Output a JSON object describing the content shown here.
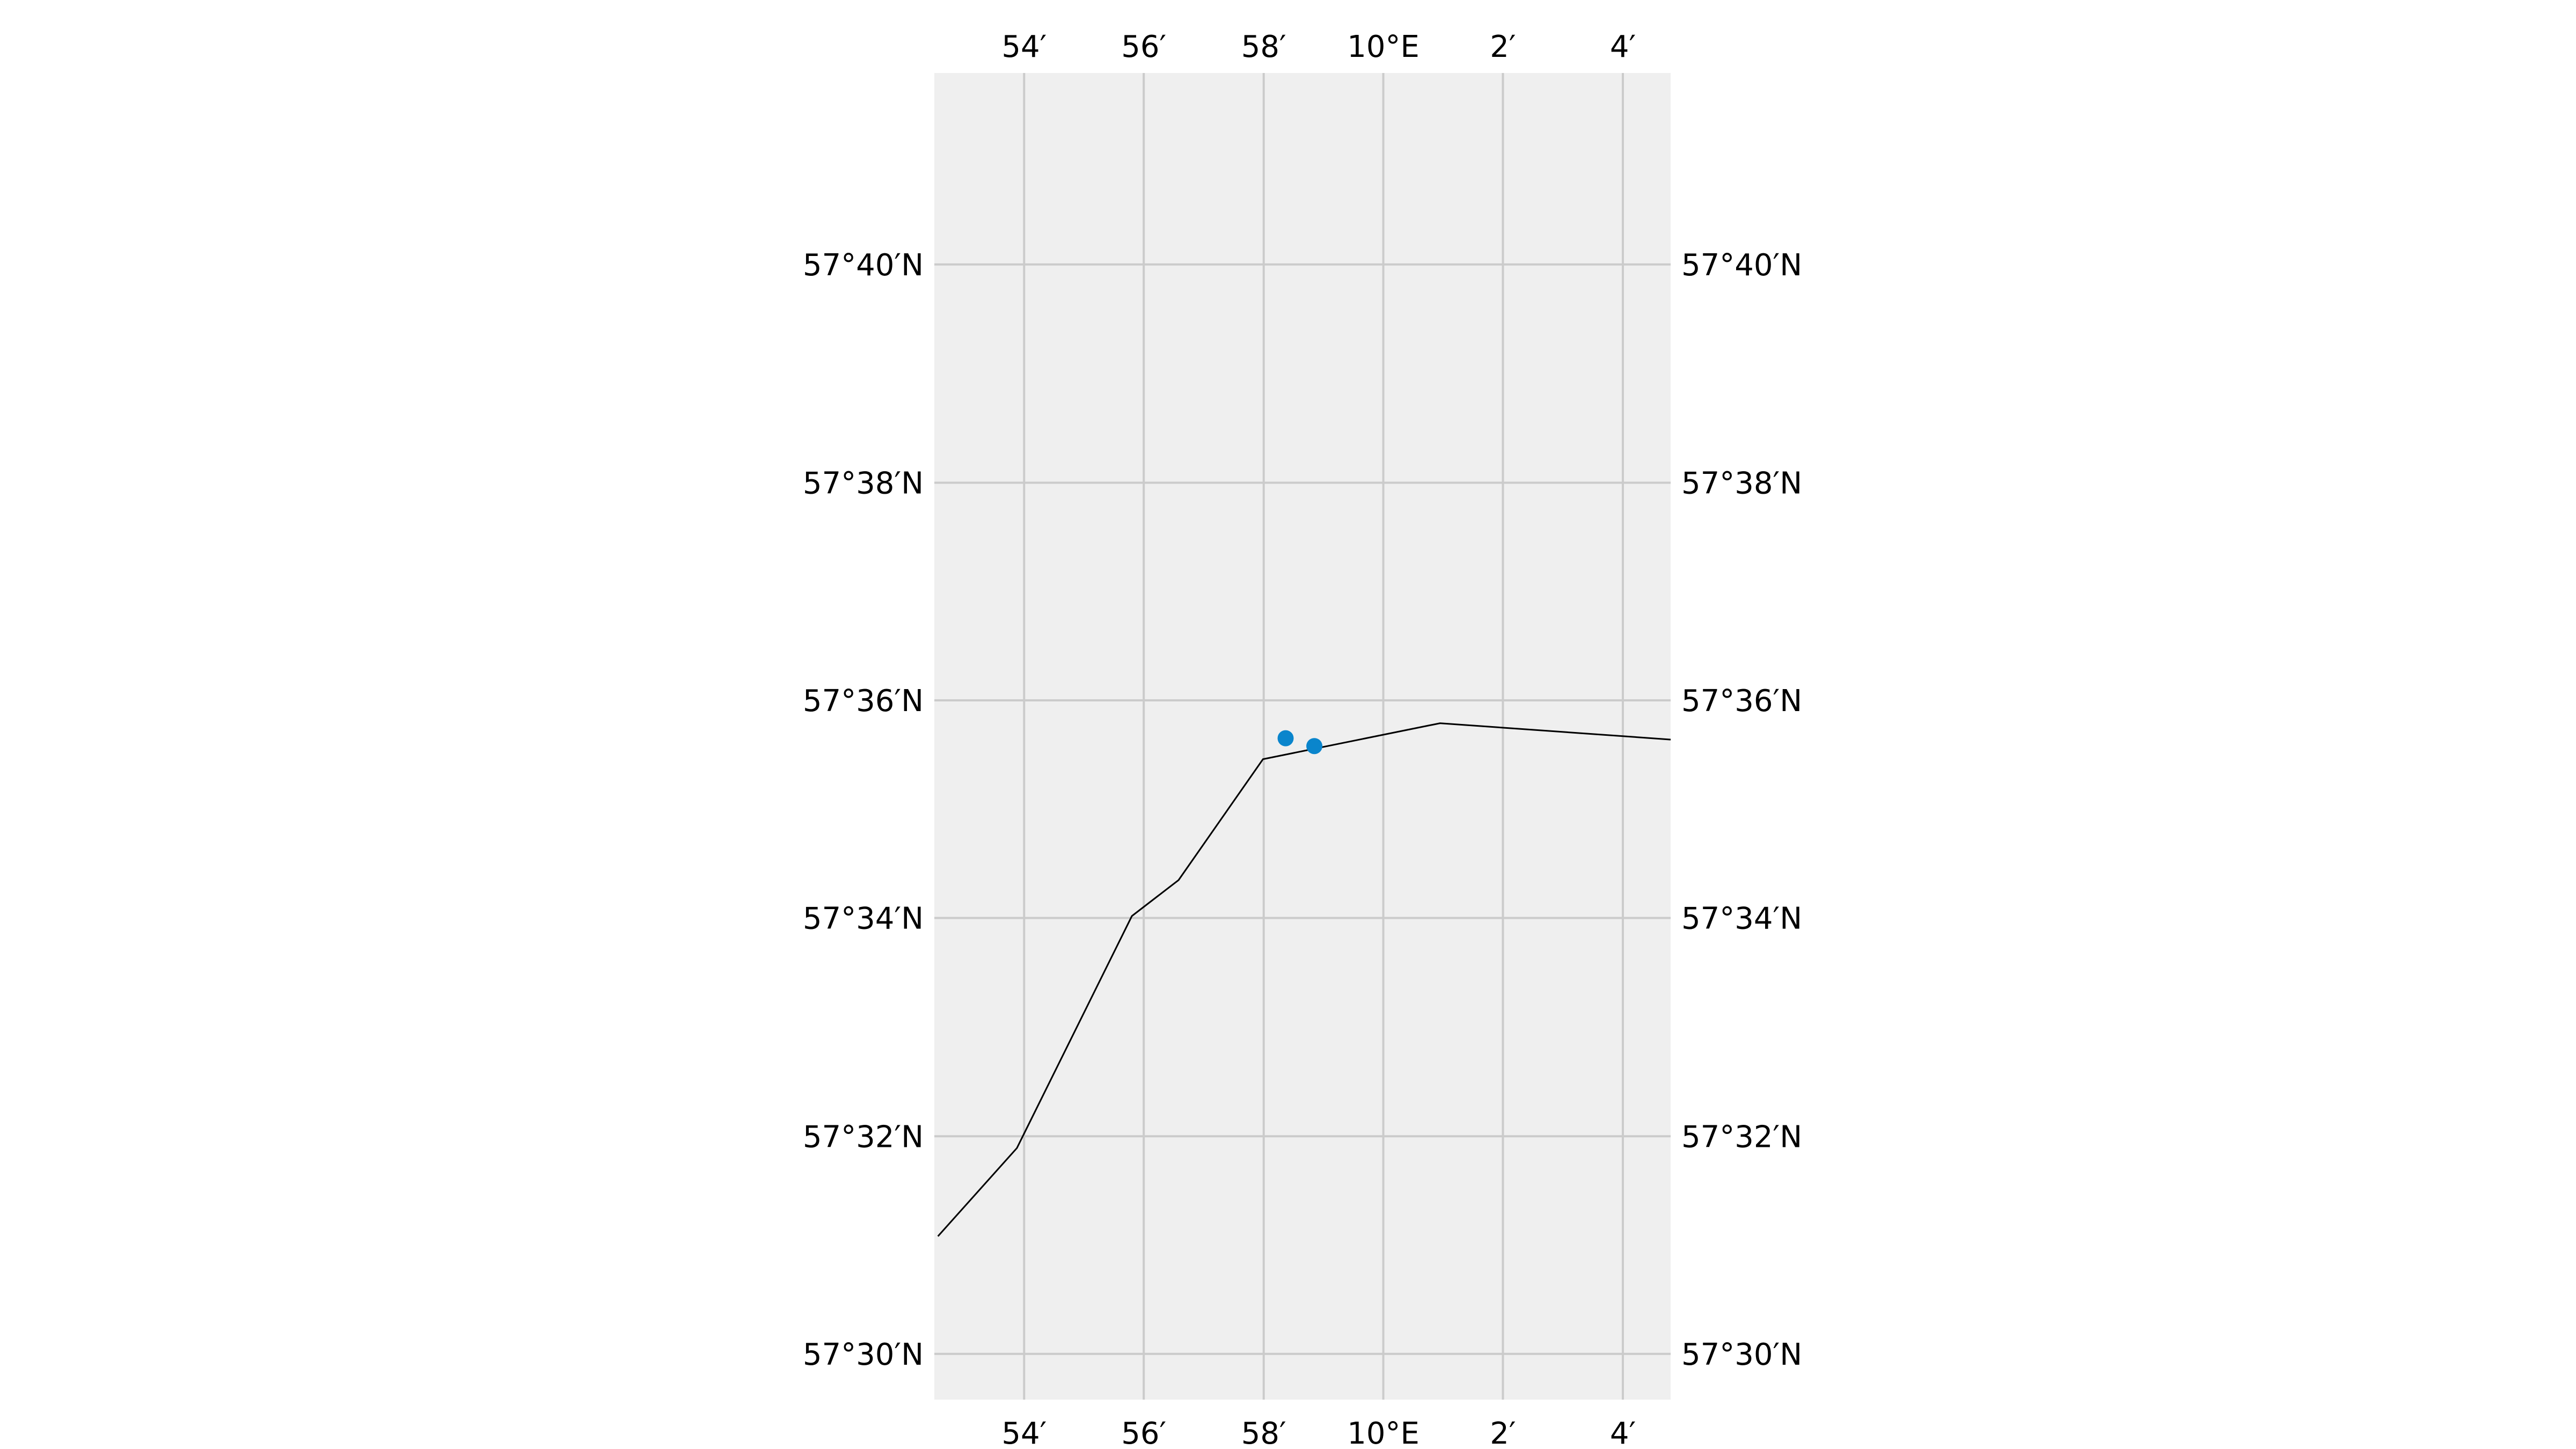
{
  "map": {
    "extent": {
      "lon_min": 9.875,
      "lon_max": 10.08,
      "lat_min": 57.493,
      "lat_max": 57.696
    },
    "colors": {
      "background": "#efefef",
      "grid": "#cbcbcb",
      "coastline": "#000000",
      "points": "#0a85cc",
      "page": "#ffffff"
    },
    "longitude_ticks": [
      {
        "value": 9.9,
        "label": "54′"
      },
      {
        "value": 9.9333,
        "label": "56′"
      },
      {
        "value": 9.9667,
        "label": "58′"
      },
      {
        "value": 10.0,
        "label": "10°E"
      },
      {
        "value": 10.0333,
        "label": "2′"
      },
      {
        "value": 10.0667,
        "label": "4′"
      }
    ],
    "latitude_ticks": [
      {
        "value": 57.5,
        "label": "57°30′N"
      },
      {
        "value": 57.5333,
        "label": "57°32′N"
      },
      {
        "value": 57.5667,
        "label": "57°34′N"
      },
      {
        "value": 57.6,
        "label": "57°36′N"
      },
      {
        "value": 57.6333,
        "label": "57°38′N"
      },
      {
        "value": 57.6667,
        "label": "57°40′N"
      }
    ],
    "coastline": [
      [
        9.876,
        57.518
      ],
      [
        9.898,
        57.5315
      ],
      [
        9.93,
        57.567
      ],
      [
        9.943,
        57.5725
      ],
      [
        9.9665,
        57.591
      ],
      [
        10.0158,
        57.5965
      ],
      [
        10.08,
        57.594
      ]
    ],
    "points": [
      [
        9.9728,
        57.5942
      ],
      [
        9.9808,
        57.593
      ]
    ]
  }
}
